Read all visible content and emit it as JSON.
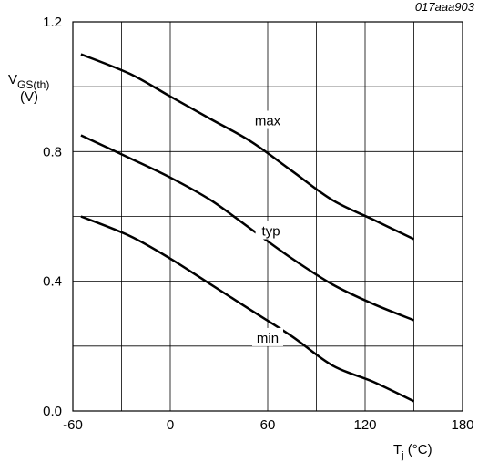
{
  "figure_id": "017aaa903",
  "chart_data": {
    "type": "line",
    "title": "",
    "ylabel_main": "V",
    "ylabel_sub": "GS(th)",
    "ylabel_unit": "(V)",
    "xlabel_main": "T",
    "xlabel_sub": "j",
    "xlabel_unit": " (°C)",
    "xlim": [
      -60,
      180
    ],
    "ylim": [
      0.0,
      1.2
    ],
    "x_ticks": [
      -60,
      0,
      60,
      120,
      180
    ],
    "x_tick_labels": [
      "-60",
      "0",
      "60",
      "120",
      "180"
    ],
    "y_ticks": [
      0.0,
      0.4,
      0.8,
      1.2
    ],
    "y_tick_labels": [
      "0.0",
      "0.4",
      "0.8",
      "1.2"
    ],
    "x_grid": [
      -60,
      -30,
      0,
      30,
      60,
      90,
      120,
      150,
      180
    ],
    "y_grid": [
      0.0,
      0.2,
      0.4,
      0.6,
      0.8,
      1.0,
      1.2
    ],
    "grid": true,
    "series": [
      {
        "name": "max",
        "x": [
          -55,
          -25,
          0,
          25,
          50,
          75,
          100,
          125,
          150
        ],
        "y": [
          1.1,
          1.04,
          0.97,
          0.9,
          0.83,
          0.74,
          0.65,
          0.59,
          0.53
        ],
        "label_at": [
          60,
          0.895
        ]
      },
      {
        "name": "typ",
        "x": [
          -55,
          -25,
          0,
          25,
          50,
          75,
          100,
          125,
          150
        ],
        "y": [
          0.85,
          0.78,
          0.72,
          0.65,
          0.56,
          0.47,
          0.39,
          0.33,
          0.28
        ],
        "label_at": [
          62,
          0.555
        ]
      },
      {
        "name": "min",
        "x": [
          -55,
          -25,
          0,
          25,
          50,
          75,
          100,
          125,
          150
        ],
        "y": [
          0.6,
          0.54,
          0.47,
          0.39,
          0.31,
          0.23,
          0.14,
          0.09,
          0.03
        ],
        "label_at": [
          60,
          0.225
        ]
      }
    ]
  }
}
